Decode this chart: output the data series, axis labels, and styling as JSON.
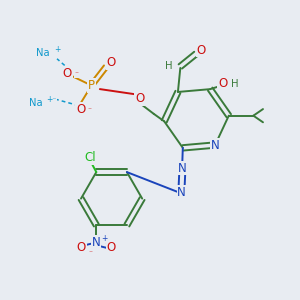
{
  "bg_color": "#e8ecf2",
  "colors": {
    "C": "#3a7a3a",
    "N": "#1a44bb",
    "O": "#cc1111",
    "P": "#cc8800",
    "Na": "#1199cc",
    "Cl": "#22bb22",
    "H": "#3a7a3a",
    "bond": "#3a7a3a"
  },
  "fs": 8.5,
  "fss": 7.2,
  "fsc": 5.5,
  "lw": 1.4
}
